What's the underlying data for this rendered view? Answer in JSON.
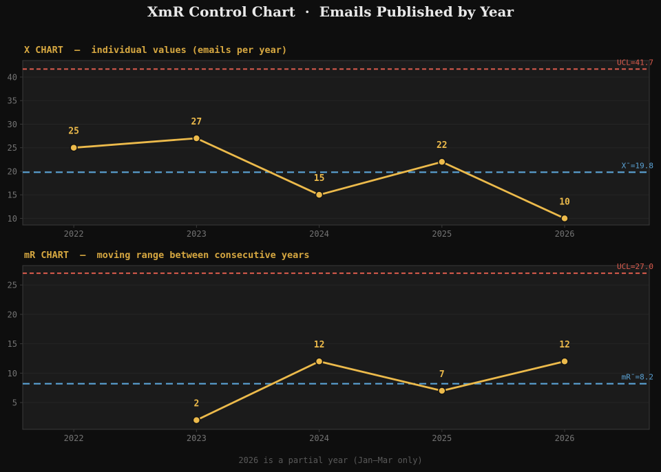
{
  "title": "XmR Control Chart  ·  Emails Published by Year",
  "footnote": "2026 is a partial year (Jan—Mar only)",
  "colors": {
    "page_bg": "#0e0e0e",
    "plot_bg": "#1b1b1b",
    "grid": "#252525",
    "spine": "#3a3a3a",
    "series": "#ecba4b",
    "marker_edge": "#141414",
    "ucl": "#dd5c4e",
    "center": "#5ba3d6",
    "tick": "#737373",
    "subtitle": "#d7a841",
    "title_text": "#e9e9e9",
    "footnote_text": "#5a5a5a"
  },
  "chart_data": [
    {
      "id": "x-chart",
      "type": "line",
      "title": "X CHART  —  individual values (emails per year)",
      "categories": [
        "2022",
        "2023",
        "2024",
        "2025",
        "2026"
      ],
      "values": [
        25,
        27,
        15,
        22,
        10
      ],
      "point_labels": [
        "25",
        "27",
        "15",
        "22",
        "10"
      ],
      "ucl": 41.7,
      "ucl_label": "UCL=41.7",
      "center": 19.8,
      "center_label": "X¯=19.8",
      "yticks": [
        10,
        15,
        20,
        25,
        30,
        35,
        40
      ],
      "ylim": [
        8.6,
        43.5
      ],
      "xlim": [
        -0.416,
        4.69
      ],
      "grid": true,
      "legend": "none"
    },
    {
      "id": "mr-chart",
      "type": "line",
      "title": "mR CHART  —  moving range between consecutive years",
      "categories": [
        "2022",
        "2023",
        "2024",
        "2025",
        "2026"
      ],
      "values": [
        null,
        2,
        12,
        7,
        12
      ],
      "point_labels": [
        null,
        "2",
        "12",
        "7",
        "12"
      ],
      "ucl": 27.0,
      "ucl_label": "UCL=27.0",
      "center": 8.2,
      "center_label": "mR¯=8.2",
      "yticks": [
        5,
        10,
        15,
        20,
        25
      ],
      "ylim": [
        0.44,
        28.3
      ],
      "xlim": [
        -0.416,
        4.69
      ],
      "grid": true,
      "legend": "none"
    }
  ]
}
